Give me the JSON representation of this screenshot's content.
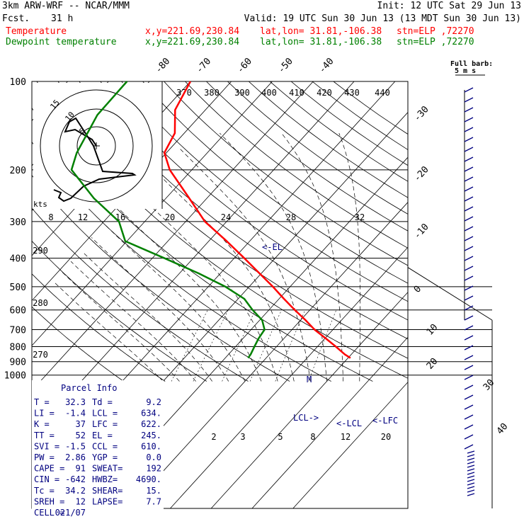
{
  "header": {
    "model": "3km ARW-WRF -- NCAR/MMM",
    "init": "Init: 12 UTC Sat 29 Jun 13",
    "fcst_label": "Fcst.",
    "fcst_value": "31 h",
    "valid": "Valid: 19 UTC Sun 30 Jun 13 (13 MDT Sun 30 Jun 13)",
    "temp_label": "Temperature",
    "dew_label": "Dewpoint temperature",
    "xy": "x,y=221.69,230.84",
    "latlon": "lat,lon= 31.81,-106.38",
    "station": "stn=ELP ,72270"
  },
  "colors": {
    "temperature": "#ff0000",
    "dewpoint": "#008000",
    "annotation": "#000080",
    "wind": "#000080"
  },
  "barb_legend": [
    "Full barb:",
    "5 m s"
  ],
  "parcel_info": {
    "title": "Parcel Info",
    "rows": [
      [
        "T  =",
        "32.3",
        "Td =",
        "9.2"
      ],
      [
        "LI =",
        "-1.4",
        "LCL =",
        "634."
      ],
      [
        "K  =",
        "37",
        "LFC =",
        "622."
      ],
      [
        "TT =",
        "52",
        "EL =",
        "245."
      ],
      [
        "SVI =",
        "-1.5",
        "CCL =",
        "610."
      ],
      [
        "PW =",
        "2.86",
        "YGP =",
        "0.0"
      ],
      [
        "CAPE =",
        "91",
        "SWEAT=",
        "192"
      ],
      [
        "CIN =",
        "-642",
        "HWBZ=",
        "4690."
      ],
      [
        "Tc =",
        "34.2",
        "SHEAR=",
        "15."
      ],
      [
        "SREH =",
        "12",
        "LAPSE=",
        "7.7"
      ],
      [
        "CELL =",
        "021/07",
        "",
        ""
      ]
    ]
  },
  "level_labels": {
    "el": "<-EL",
    "m": "M",
    "lcl_left": "LCL->",
    "lcl_right": "<-LCL",
    "lfc": "<-LFC"
  },
  "hodograph": {
    "units": "kts",
    "ring_labels": [
      "5",
      "10",
      "15"
    ]
  },
  "chart_data": {
    "type": "line",
    "title": "",
    "y_axis": "pressure (hPa)",
    "pressure_ticks": [
      100,
      200,
      300,
      400,
      500,
      600,
      700,
      800,
      900,
      1000
    ],
    "temp_ticks_top": [
      -80,
      -70,
      -60,
      -50,
      -40
    ],
    "temp_ticks_right": [
      -30,
      -20,
      -10,
      0,
      10,
      20,
      30,
      40
    ],
    "theta_labels_top": [
      370,
      380,
      390,
      400,
      410,
      420,
      430,
      440
    ],
    "theta_labels_left": [
      290,
      280,
      270
    ],
    "mixing_ratio_top": [
      8,
      12,
      16,
      20,
      24,
      28,
      32
    ],
    "mixing_ratio_bottom": [
      2,
      3,
      5,
      8,
      12,
      20
    ],
    "series": [
      {
        "name": "Temperature",
        "color": "#ff0000",
        "points": [
          {
            "p": 100,
            "t": -70.0
          },
          {
            "p": 125,
            "t": -67.4
          },
          {
            "p": 150,
            "t": -62.3
          },
          {
            "p": 175,
            "t": -60.5
          },
          {
            "p": 200,
            "t": -55.4
          },
          {
            "p": 250,
            "t": -44.3
          },
          {
            "p": 300,
            "t": -35.3
          },
          {
            "p": 350,
            "t": -25.6
          },
          {
            "p": 400,
            "t": -17.5
          },
          {
            "p": 450,
            "t": -10.5
          },
          {
            "p": 500,
            "t": -4.2
          },
          {
            "p": 550,
            "t": 1.2
          },
          {
            "p": 600,
            "t": 6.3
          },
          {
            "p": 650,
            "t": 11.2
          },
          {
            "p": 700,
            "t": 15.5
          },
          {
            "p": 750,
            "t": 20.2
          },
          {
            "p": 800,
            "t": 24.5
          },
          {
            "p": 850,
            "t": 28.4
          },
          {
            "p": 875,
            "t": 30.6
          }
        ]
      },
      {
        "name": "Dewpoint temperature",
        "color": "#008000",
        "points": [
          {
            "p": 100,
            "t": -85.5
          },
          {
            "p": 130,
            "t": -85.3
          },
          {
            "p": 175,
            "t": -81.9
          },
          {
            "p": 200,
            "t": -79.4
          },
          {
            "p": 250,
            "t": -67.6
          },
          {
            "p": 300,
            "t": -56.3
          },
          {
            "p": 350,
            "t": -50.4
          },
          {
            "p": 400,
            "t": -37.0
          },
          {
            "p": 450,
            "t": -25.4
          },
          {
            "p": 500,
            "t": -15.8
          },
          {
            "p": 550,
            "t": -8.5
          },
          {
            "p": 600,
            "t": -4.0
          },
          {
            "p": 650,
            "t": 0.6
          },
          {
            "p": 700,
            "t": 3.3
          },
          {
            "p": 750,
            "t": 3.8
          },
          {
            "p": 800,
            "t": 4.6
          },
          {
            "p": 850,
            "t": 5.4
          },
          {
            "p": 875,
            "t": 5.6
          }
        ]
      }
    ]
  }
}
